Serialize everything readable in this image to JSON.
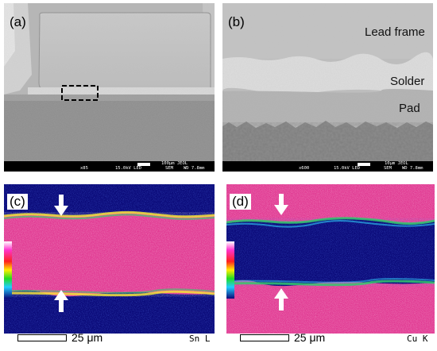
{
  "panels": {
    "a": {
      "label": "(a)",
      "sem_bar": {
        "scale_text": "100μm JEOL",
        "mag": "x85",
        "voltage": "15.0kV LED",
        "mode": "SEM",
        "wd": "WD 7.8mm"
      }
    },
    "b": {
      "label": "(b)",
      "regions": {
        "lead_frame": "Lead frame",
        "solder": "Solder",
        "pad": "Pad"
      },
      "sem_bar": {
        "scale_text": "10μm JEOL",
        "mag": "x600",
        "voltage": "15.0kV LED",
        "mode": "SEM",
        "wd": "WD 7.8mm"
      }
    },
    "c": {
      "label": "(c)",
      "scale": "25 μm",
      "element": "Sn L"
    },
    "d": {
      "label": "(d)",
      "scale": "25 μm",
      "element": "Cu K"
    }
  }
}
